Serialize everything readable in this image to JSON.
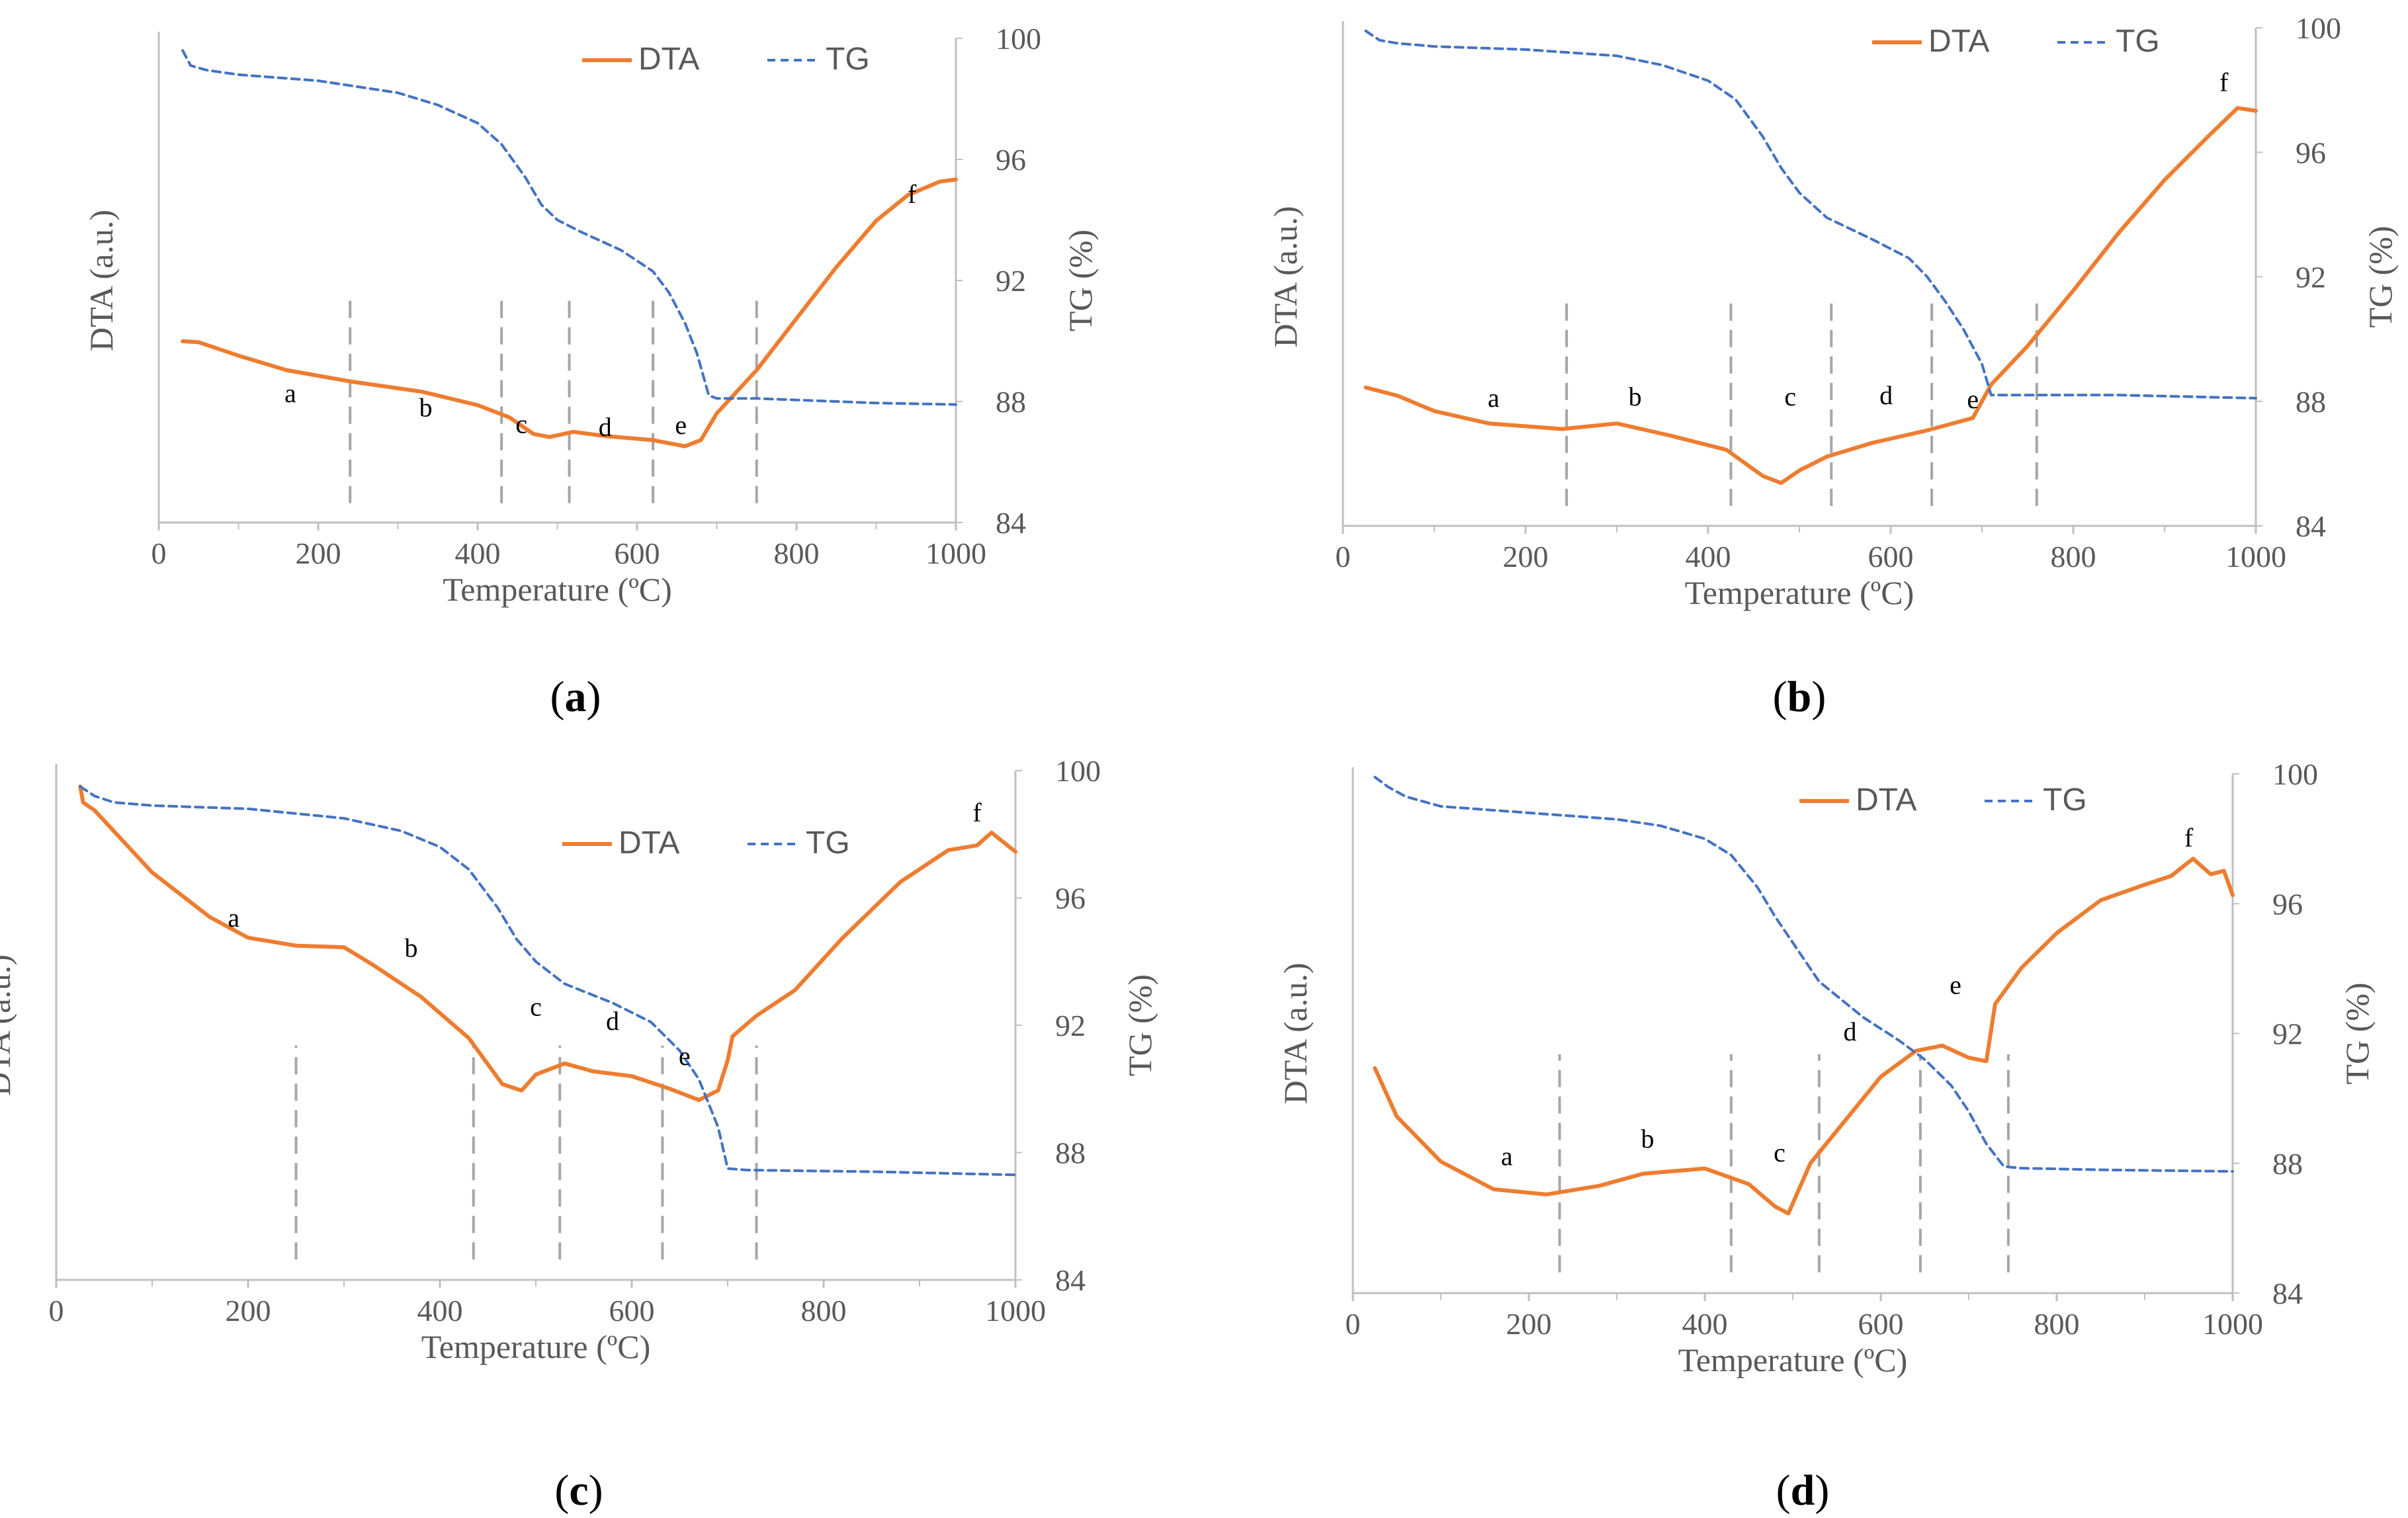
{
  "colors": {
    "dta": "#ED7D31",
    "tg": "#4472C4",
    "axis": "#BFBFBF",
    "marker": "#A6A6A6"
  },
  "chart_data": [
    {
      "type": "line",
      "caption_letter": "a",
      "xlabel": "Temperature (ºC)",
      "ylabel_left": "DTA (a.u.)",
      "ylabel_right": "TG (%)",
      "xlim": [
        0,
        1000
      ],
      "ylim_right": [
        84,
        100
      ],
      "x_ticks": [
        "0",
        "200",
        "400",
        "600",
        "800",
        "1000"
      ],
      "y_ticks_right": [
        "84",
        "88",
        "92",
        "96",
        "100"
      ],
      "legend": [
        "DTA",
        "TG"
      ],
      "dividers": [
        240,
        430,
        515,
        620,
        750
      ],
      "region_labels": [
        {
          "label": "a",
          "x": 165,
          "dta": 4.7
        },
        {
          "label": "b",
          "x": 335,
          "dta": 3.3
        },
        {
          "label": "c",
          "x": 455,
          "dta": 1.7
        },
        {
          "label": "d",
          "x": 560,
          "dta": 1.4
        },
        {
          "label": "e",
          "x": 655,
          "dta": 1.6
        },
        {
          "label": "f",
          "x": 945,
          "dta": 24.0
        }
      ],
      "series": [
        {
          "name": "DTA",
          "axis": "left",
          "x": [
            30,
            50,
            100,
            160,
            240,
            330,
            400,
            440,
            470,
            490,
            520,
            560,
            620,
            660,
            680,
            700,
            750,
            800,
            850,
            900,
            940,
            980,
            1000
          ],
          "values": [
            10.6,
            10.5,
            9.2,
            7.8,
            6.7,
            5.7,
            4.4,
            3.2,
            1.6,
            1.3,
            1.8,
            1.4,
            1.0,
            0.4,
            1.0,
            3.6,
            7.8,
            12.8,
            17.8,
            22.3,
            24.8,
            26.1,
            26.3
          ]
        },
        {
          "name": "TG",
          "axis": "right",
          "x": [
            30,
            40,
            60,
            100,
            200,
            300,
            350,
            400,
            430,
            460,
            480,
            500,
            530,
            580,
            620,
            640,
            660,
            675,
            690,
            700,
            750,
            800,
            900,
            1000
          ],
          "values": [
            99.6,
            99.1,
            98.95,
            98.8,
            98.6,
            98.2,
            97.8,
            97.2,
            96.5,
            95.4,
            94.5,
            94.0,
            93.6,
            93.0,
            92.3,
            91.6,
            90.6,
            89.6,
            88.2,
            88.1,
            88.1,
            88.05,
            87.95,
            87.9
          ]
        }
      ]
    },
    {
      "type": "line",
      "caption_letter": "b",
      "xlabel": "Temperature (ºC)",
      "ylabel_left": "DTA (a.u.)",
      "ylabel_right": "TG (%)",
      "xlim": [
        0,
        1000
      ],
      "ylim_right": [
        84,
        100
      ],
      "x_ticks": [
        "0",
        "200",
        "400",
        "600",
        "800",
        "1000"
      ],
      "y_ticks_right": [
        "84",
        "88",
        "92",
        "96",
        "100"
      ],
      "legend": [
        "DTA",
        "TG"
      ],
      "dividers": [
        245,
        425,
        535,
        645,
        760
      ],
      "region_labels": [
        {
          "label": "a",
          "x": 165,
          "dta": 4.6
        },
        {
          "label": "b",
          "x": 320,
          "dta": 4.7
        },
        {
          "label": "c",
          "x": 490,
          "dta": 4.7
        },
        {
          "label": "d",
          "x": 595,
          "dta": 4.8
        },
        {
          "label": "e",
          "x": 690,
          "dta": 4.5
        },
        {
          "label": "f",
          "x": 965,
          "dta": 27.4
        }
      ],
      "series": [
        {
          "name": "DTA",
          "axis": "left",
          "x": [
            25,
            60,
            100,
            160,
            240,
            300,
            360,
            420,
            460,
            480,
            500,
            530,
            580,
            640,
            690,
            710,
            750,
            800,
            850,
            900,
            950,
            980,
            1000
          ],
          "values": [
            6.0,
            5.4,
            4.3,
            3.4,
            3.0,
            3.4,
            2.5,
            1.5,
            -0.4,
            -0.9,
            0.0,
            1.0,
            2.0,
            2.9,
            3.8,
            6.2,
            9.0,
            13.0,
            17.2,
            21.0,
            24.3,
            26.2,
            26.0
          ]
        },
        {
          "name": "TG",
          "axis": "right",
          "x": [
            25,
            40,
            60,
            100,
            200,
            300,
            350,
            400,
            430,
            460,
            480,
            500,
            530,
            580,
            620,
            640,
            660,
            680,
            700,
            710,
            760,
            850,
            1000
          ],
          "values": [
            99.9,
            99.6,
            99.5,
            99.4,
            99.3,
            99.1,
            98.8,
            98.3,
            97.7,
            96.5,
            95.5,
            94.7,
            93.9,
            93.2,
            92.6,
            92.0,
            91.2,
            90.3,
            89.2,
            88.2,
            88.2,
            88.2,
            88.1
          ]
        }
      ]
    },
    {
      "type": "line",
      "caption_letter": "c",
      "xlabel": "Temperature (ºC)",
      "ylabel_left": "DTA (a.u.)",
      "ylabel_right": "TG (%)",
      "xlim": [
        0,
        1000
      ],
      "ylim_right": [
        84,
        100
      ],
      "x_ticks": [
        "0",
        "200",
        "400",
        "600",
        "800",
        "1000"
      ],
      "y_ticks_right": [
        "84",
        "88",
        "92",
        "96",
        "100"
      ],
      "legend": [
        "DTA",
        "TG"
      ],
      "dividers": [
        250,
        435,
        525,
        632,
        730
      ],
      "region_labels": [
        {
          "label": "a",
          "x": 185,
          "dta": 14.2
        },
        {
          "label": "b",
          "x": 370,
          "dta": 12.3
        },
        {
          "label": "c",
          "x": 500,
          "dta": 8.6
        },
        {
          "label": "d",
          "x": 580,
          "dta": 7.7
        },
        {
          "label": "e",
          "x": 655,
          "dta": 5.5
        },
        {
          "label": "f",
          "x": 960,
          "dta": 20.8
        }
      ],
      "series": [
        {
          "name": "DTA",
          "axis": "left",
          "x": [
            25,
            28,
            40,
            60,
            100,
            160,
            200,
            250,
            300,
            330,
            380,
            430,
            465,
            485,
            500,
            530,
            560,
            600,
            640,
            670,
            690,
            700,
            705,
            730,
            770,
            820,
            880,
            930,
            960,
            975,
            1000
          ],
          "values": [
            23.0,
            22.0,
            21.5,
            20.2,
            17.6,
            14.8,
            13.5,
            13.0,
            12.9,
            11.8,
            9.8,
            7.2,
            4.3,
            3.9,
            4.9,
            5.6,
            5.1,
            4.8,
            4.0,
            3.3,
            3.9,
            5.8,
            7.3,
            8.6,
            10.2,
            13.5,
            17.0,
            19.0,
            19.3,
            20.1,
            18.9
          ]
        },
        {
          "name": "TG",
          "axis": "right",
          "x": [
            25,
            40,
            60,
            100,
            200,
            300,
            360,
            400,
            430,
            460,
            480,
            500,
            530,
            580,
            620,
            650,
            670,
            690,
            700,
            720,
            850,
            1000
          ],
          "values": [
            99.5,
            99.2,
            99.0,
            98.9,
            98.8,
            98.5,
            98.1,
            97.6,
            96.9,
            95.7,
            94.7,
            94.0,
            93.3,
            92.7,
            92.1,
            91.2,
            90.3,
            88.8,
            87.5,
            87.45,
            87.4,
            87.3
          ]
        }
      ]
    },
    {
      "type": "line",
      "caption_letter": "d",
      "xlabel": "Temperature (ºC)",
      "ylabel_left": "DTA (a.u.)",
      "ylabel_right": "TG (%)",
      "xlim": [
        0,
        1000
      ],
      "ylim_right": [
        84,
        100
      ],
      "x_ticks": [
        "0",
        "200",
        "400",
        "600",
        "800",
        "1000"
      ],
      "y_ticks_right": [
        "84",
        "88",
        "92",
        "96",
        "100"
      ],
      "legend": [
        "DTA",
        "TG"
      ],
      "dividers": [
        235,
        430,
        530,
        645,
        745
      ],
      "region_labels": [
        {
          "label": "a",
          "x": 175,
          "dta": 3.4
        },
        {
          "label": "b",
          "x": 335,
          "dta": 4.4
        },
        {
          "label": "c",
          "x": 485,
          "dta": 3.6
        },
        {
          "label": "d",
          "x": 565,
          "dta": 10.6
        },
        {
          "label": "e",
          "x": 685,
          "dta": 13.3
        },
        {
          "label": "f",
          "x": 950,
          "dta": 21.8
        }
      ],
      "series": [
        {
          "name": "DTA",
          "axis": "left",
          "x": [
            25,
            50,
            100,
            160,
            220,
            280,
            330,
            400,
            450,
            480,
            495,
            520,
            560,
            600,
            640,
            670,
            700,
            720,
            730,
            760,
            800,
            850,
            900,
            930,
            955,
            975,
            990,
            1000
          ],
          "values": [
            9.0,
            6.2,
            3.6,
            2.0,
            1.7,
            2.2,
            2.9,
            3.2,
            2.3,
            1.0,
            0.6,
            3.5,
            6.0,
            8.5,
            10.0,
            10.3,
            9.6,
            9.4,
            12.7,
            14.8,
            16.8,
            18.7,
            19.6,
            20.1,
            21.1,
            20.2,
            20.4,
            19.0
          ]
        },
        {
          "name": "TG",
          "axis": "right",
          "x": [
            25,
            40,
            60,
            100,
            200,
            300,
            350,
            400,
            430,
            460,
            480,
            500,
            530,
            580,
            620,
            650,
            680,
            700,
            720,
            740,
            760,
            850,
            1000
          ],
          "values": [
            99.9,
            99.6,
            99.3,
            99.0,
            98.8,
            98.6,
            98.4,
            98.0,
            97.5,
            96.5,
            95.6,
            94.8,
            93.6,
            92.5,
            91.8,
            91.2,
            90.4,
            89.6,
            88.6,
            87.9,
            87.85,
            87.8,
            87.75
          ]
        }
      ]
    }
  ]
}
